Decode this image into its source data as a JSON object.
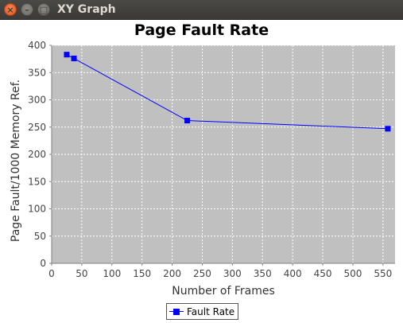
{
  "window": {
    "title": "XY Graph",
    "close_glyph": "×",
    "minimize_glyph": "–",
    "maximize_glyph": "□"
  },
  "colors": {
    "plot_background": "#c0c0c0",
    "series": "#0000ff",
    "gridline": "#ffffff"
  },
  "chart_data": {
    "type": "line",
    "title": "Page Fault Rate",
    "xlabel": "Number of Frames",
    "ylabel": "Page Fault/1000 Memory Ref.",
    "xlim": [
      0,
      570
    ],
    "ylim": [
      0,
      400
    ],
    "xticks": [
      0,
      50,
      100,
      150,
      200,
      250,
      300,
      350,
      400,
      450,
      500,
      550
    ],
    "yticks": [
      0,
      50,
      100,
      150,
      200,
      250,
      300,
      350,
      400
    ],
    "grid": true,
    "legend_position": "bottom",
    "series": [
      {
        "name": "Fault Rate",
        "marker": "square",
        "x": [
          25,
          37,
          225,
          558
        ],
        "y": [
          383,
          376,
          262,
          247
        ]
      }
    ]
  }
}
